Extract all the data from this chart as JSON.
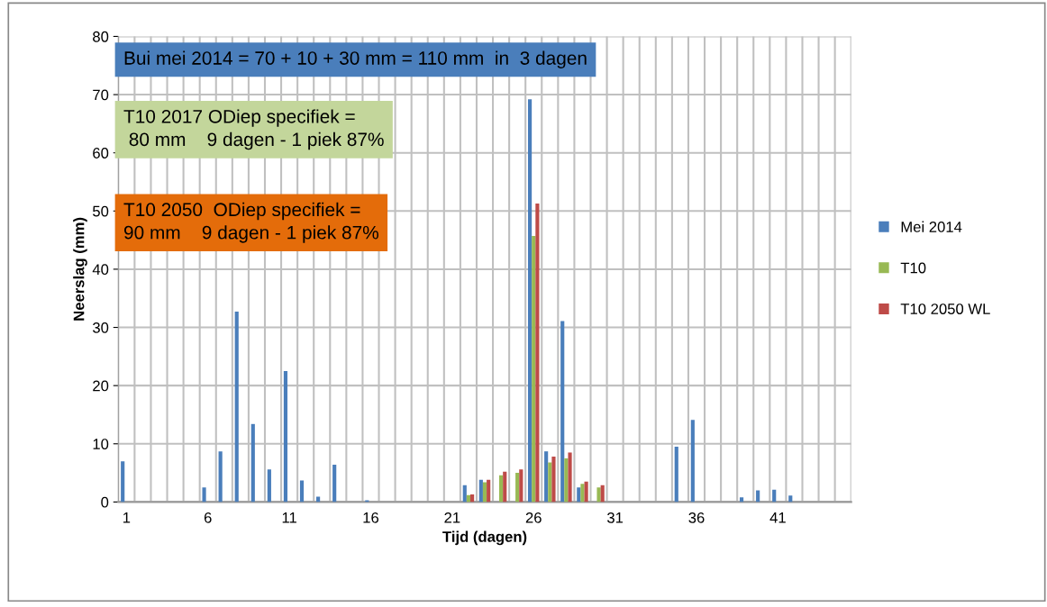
{
  "chart_data": {
    "type": "bar",
    "xlabel": "Tijd (dagen)",
    "ylabel": "Neerslag (mm)",
    "categories": [
      "1",
      null,
      null,
      null,
      null,
      "6",
      null,
      null,
      null,
      null,
      "11",
      null,
      null,
      null,
      null,
      "16",
      null,
      null,
      null,
      null,
      "21",
      null,
      null,
      null,
      null,
      "26",
      null,
      null,
      null,
      null,
      "31",
      null,
      null,
      null,
      null,
      "36",
      null,
      null,
      null,
      null,
      "41",
      null,
      null,
      null,
      null
    ],
    "series": [
      {
        "name": "Mei 2014",
        "color": "#4a7ebb",
        "values": [
          7.0,
          0,
          0,
          0,
          0,
          2.5,
          8.7,
          32.7,
          13.4,
          5.6,
          22.5,
          3.7,
          0.9,
          6.4,
          0,
          0.3,
          0,
          0,
          0,
          0,
          0,
          2.9,
          3.8,
          0,
          0,
          69.2,
          8.7,
          31.1,
          2.5,
          0,
          0,
          0,
          0,
          0,
          9.5,
          14.1,
          0,
          0,
          0.8,
          2.0,
          2.1,
          1.1,
          0,
          0,
          0
        ]
      },
      {
        "name": "T10",
        "color": "#98b954",
        "values": [
          0,
          0,
          0,
          0,
          0,
          0,
          0,
          0,
          0,
          0,
          0,
          0,
          0,
          0,
          0,
          0,
          0,
          0,
          0,
          0,
          0,
          1.2,
          3.4,
          4.6,
          5.0,
          45.7,
          6.8,
          7.5,
          3.1,
          2.5,
          0,
          0,
          0,
          0,
          0,
          0,
          0,
          0,
          0,
          0,
          0,
          0,
          0,
          0,
          0
        ]
      },
      {
        "name": "T10 2050 WL",
        "color": "#be4b48",
        "values": [
          0,
          0,
          0,
          0,
          0,
          0,
          0,
          0,
          0,
          0,
          0,
          0,
          0,
          0,
          0,
          0,
          0,
          0,
          0,
          0,
          0,
          1.3,
          3.8,
          5.2,
          5.6,
          51.3,
          7.8,
          8.5,
          3.5,
          2.9,
          0,
          0,
          0,
          0,
          0,
          0,
          0,
          0,
          0,
          0,
          0,
          0,
          0,
          0,
          0
        ]
      }
    ],
    "ylim": [
      0,
      80
    ],
    "yticks": [
      0,
      10,
      20,
      30,
      40,
      50,
      60,
      70,
      80
    ],
    "grid": true,
    "legend": "right",
    "annotations": [
      "Bui mei 2014 = 70 + 10 + 30 mm = 110 mm  in  3 dagen",
      "T10 2017 ODiep specifiek =\n 80 mm    9 dagen - 1 piek 87%",
      "T10 2050  ODiep specifiek =\n90 mm    9 dagen - 1 piek 87%"
    ]
  }
}
